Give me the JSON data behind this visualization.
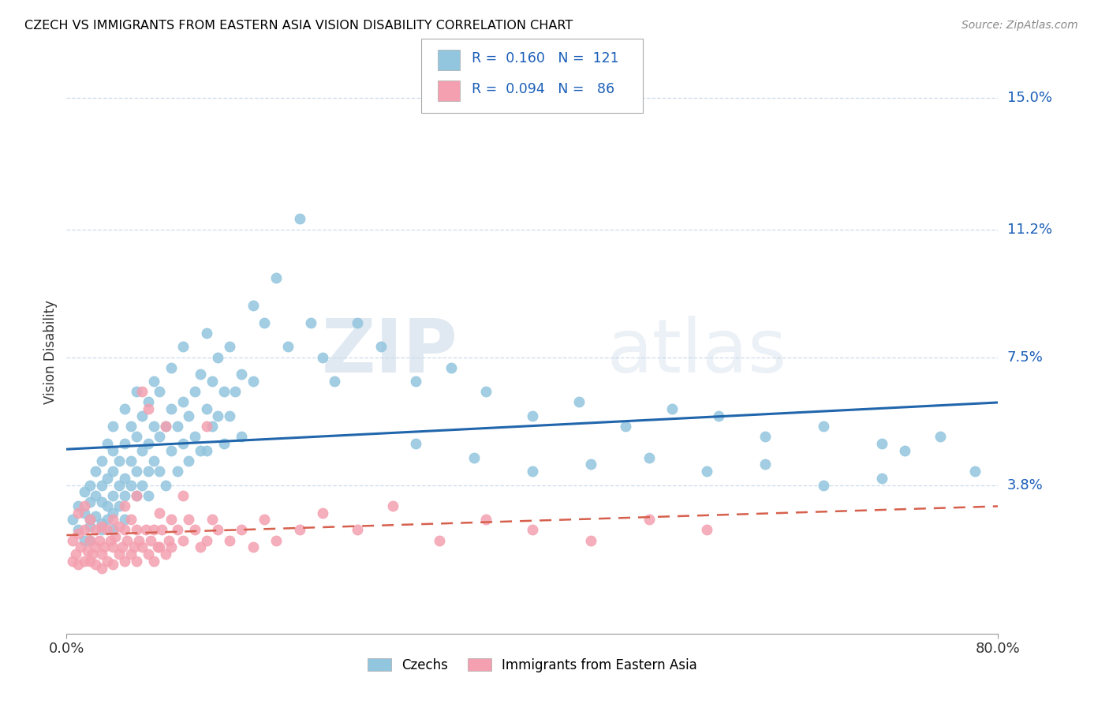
{
  "title": "CZECH VS IMMIGRANTS FROM EASTERN ASIA VISION DISABILITY CORRELATION CHART",
  "source": "Source: ZipAtlas.com",
  "ylabel": "Vision Disability",
  "y_ticks": [
    0.038,
    0.075,
    0.112,
    0.15
  ],
  "y_tick_labels": [
    "3.8%",
    "7.5%",
    "11.2%",
    "15.0%"
  ],
  "x_lim": [
    0.0,
    0.8
  ],
  "y_lim": [
    -0.005,
    0.158
  ],
  "color_czech": "#92c5de",
  "color_east_asia": "#f4a0b0",
  "color_trend_czech": "#2166ac",
  "color_trend_east_asia": "#d6604d",
  "color_grid": "#c8d8e8",
  "label_czech": "Czechs",
  "label_east_asia": "Immigrants from Eastern Asia",
  "legend_color_r": "#1a5eb8",
  "legend_color_n": "#1a5eb8",
  "watermark": "ZIPatlas",
  "czech_x": [
    0.005,
    0.01,
    0.01,
    0.015,
    0.015,
    0.015,
    0.02,
    0.02,
    0.02,
    0.02,
    0.02,
    0.025,
    0.025,
    0.025,
    0.03,
    0.03,
    0.03,
    0.03,
    0.03,
    0.035,
    0.035,
    0.035,
    0.035,
    0.04,
    0.04,
    0.04,
    0.04,
    0.04,
    0.04,
    0.045,
    0.045,
    0.045,
    0.05,
    0.05,
    0.05,
    0.05,
    0.05,
    0.055,
    0.055,
    0.055,
    0.06,
    0.06,
    0.06,
    0.06,
    0.065,
    0.065,
    0.065,
    0.07,
    0.07,
    0.07,
    0.07,
    0.075,
    0.075,
    0.075,
    0.08,
    0.08,
    0.08,
    0.085,
    0.085,
    0.09,
    0.09,
    0.09,
    0.095,
    0.095,
    0.1,
    0.1,
    0.1,
    0.105,
    0.105,
    0.11,
    0.11,
    0.115,
    0.115,
    0.12,
    0.12,
    0.12,
    0.125,
    0.125,
    0.13,
    0.13,
    0.135,
    0.135,
    0.14,
    0.14,
    0.145,
    0.15,
    0.15,
    0.16,
    0.16,
    0.17,
    0.18,
    0.19,
    0.2,
    0.21,
    0.22,
    0.23,
    0.25,
    0.27,
    0.3,
    0.33,
    0.36,
    0.4,
    0.44,
    0.48,
    0.52,
    0.56,
    0.6,
    0.65,
    0.7,
    0.72,
    0.75,
    0.78,
    0.3,
    0.35,
    0.4,
    0.45,
    0.5,
    0.55,
    0.6,
    0.65,
    0.7
  ],
  "czech_y": [
    0.028,
    0.032,
    0.025,
    0.03,
    0.036,
    0.022,
    0.033,
    0.028,
    0.038,
    0.026,
    0.022,
    0.035,
    0.029,
    0.042,
    0.033,
    0.027,
    0.038,
    0.025,
    0.045,
    0.032,
    0.04,
    0.028,
    0.05,
    0.035,
    0.042,
    0.03,
    0.048,
    0.025,
    0.055,
    0.038,
    0.045,
    0.032,
    0.04,
    0.05,
    0.035,
    0.06,
    0.028,
    0.045,
    0.038,
    0.055,
    0.042,
    0.052,
    0.035,
    0.065,
    0.048,
    0.038,
    0.058,
    0.05,
    0.042,
    0.062,
    0.035,
    0.055,
    0.045,
    0.068,
    0.052,
    0.042,
    0.065,
    0.055,
    0.038,
    0.06,
    0.048,
    0.072,
    0.055,
    0.042,
    0.062,
    0.05,
    0.078,
    0.058,
    0.045,
    0.065,
    0.052,
    0.07,
    0.048,
    0.082,
    0.06,
    0.048,
    0.068,
    0.055,
    0.075,
    0.058,
    0.065,
    0.05,
    0.078,
    0.058,
    0.065,
    0.07,
    0.052,
    0.09,
    0.068,
    0.085,
    0.098,
    0.078,
    0.115,
    0.085,
    0.075,
    0.068,
    0.085,
    0.078,
    0.068,
    0.072,
    0.065,
    0.058,
    0.062,
    0.055,
    0.06,
    0.058,
    0.052,
    0.055,
    0.05,
    0.048,
    0.052,
    0.042,
    0.05,
    0.046,
    0.042,
    0.044,
    0.046,
    0.042,
    0.044,
    0.038,
    0.04
  ],
  "east_asia_x": [
    0.005,
    0.005,
    0.008,
    0.01,
    0.01,
    0.01,
    0.012,
    0.015,
    0.015,
    0.015,
    0.018,
    0.02,
    0.02,
    0.02,
    0.022,
    0.025,
    0.025,
    0.025,
    0.028,
    0.03,
    0.03,
    0.03,
    0.032,
    0.035,
    0.035,
    0.038,
    0.04,
    0.04,
    0.04,
    0.042,
    0.045,
    0.045,
    0.048,
    0.05,
    0.05,
    0.05,
    0.052,
    0.055,
    0.055,
    0.058,
    0.06,
    0.06,
    0.06,
    0.062,
    0.065,
    0.065,
    0.068,
    0.07,
    0.07,
    0.072,
    0.075,
    0.075,
    0.078,
    0.08,
    0.08,
    0.082,
    0.085,
    0.085,
    0.088,
    0.09,
    0.09,
    0.095,
    0.1,
    0.1,
    0.105,
    0.11,
    0.115,
    0.12,
    0.12,
    0.125,
    0.13,
    0.14,
    0.15,
    0.16,
    0.17,
    0.18,
    0.2,
    0.22,
    0.25,
    0.28,
    0.32,
    0.36,
    0.4,
    0.45,
    0.5,
    0.55
  ],
  "east_asia_y": [
    0.022,
    0.016,
    0.018,
    0.024,
    0.015,
    0.03,
    0.02,
    0.025,
    0.016,
    0.032,
    0.019,
    0.022,
    0.016,
    0.028,
    0.018,
    0.02,
    0.025,
    0.015,
    0.022,
    0.018,
    0.026,
    0.014,
    0.02,
    0.025,
    0.016,
    0.022,
    0.02,
    0.028,
    0.015,
    0.023,
    0.018,
    0.026,
    0.02,
    0.025,
    0.016,
    0.032,
    0.022,
    0.018,
    0.028,
    0.02,
    0.025,
    0.016,
    0.035,
    0.022,
    0.065,
    0.02,
    0.025,
    0.018,
    0.06,
    0.022,
    0.025,
    0.016,
    0.02,
    0.03,
    0.02,
    0.025,
    0.055,
    0.018,
    0.022,
    0.028,
    0.02,
    0.025,
    0.035,
    0.022,
    0.028,
    0.025,
    0.02,
    0.055,
    0.022,
    0.028,
    0.025,
    0.022,
    0.025,
    0.02,
    0.028,
    0.022,
    0.025,
    0.03,
    0.025,
    0.032,
    0.022,
    0.028,
    0.025,
    0.022,
    0.028,
    0.025
  ]
}
